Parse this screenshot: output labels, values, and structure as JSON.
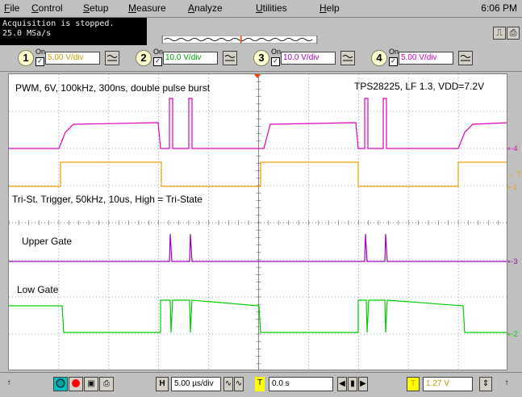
{
  "menubar": {
    "items": [
      {
        "label": "File",
        "u": "F",
        "rest": "ile"
      },
      {
        "label": "Control",
        "u": "C",
        "rest": "ontrol"
      },
      {
        "label": "Setup",
        "u": "S",
        "rest": "etup"
      },
      {
        "label": "Measure",
        "u": "M",
        "rest": "easure"
      },
      {
        "label": "Analyze",
        "u": "A",
        "rest": "nalyze"
      },
      {
        "label": "Utilities",
        "u": "U",
        "rest": "tilities"
      },
      {
        "label": "Help",
        "u": "H",
        "rest": "elp"
      }
    ],
    "clock": "6:06 PM"
  },
  "status": {
    "line1": "Acquisition is stopped.",
    "line2": "25.0 MSa/s"
  },
  "channels": [
    {
      "num": "1",
      "on": "On",
      "scale": "5.00 V/div",
      "color": "#ffff00"
    },
    {
      "num": "2",
      "on": "On",
      "scale": "10.0 V/div",
      "color": "#00ff00"
    },
    {
      "num": "3",
      "on": "On",
      "scale": "10.0 V/div",
      "color": "#ffff00"
    },
    {
      "num": "4",
      "on": "On",
      "scale": "5.00 V/div",
      "color": "#ff00ff"
    }
  ],
  "annotations": {
    "pwm": "PWM, 6V, 100kHz, 300ns, double pulse burst",
    "tps": "TPS28225, LF 1.3, VDD=7.2V",
    "tristate": "Tri-St. Trigger, 50kHz, 10us, High = Tri-State",
    "upper": "Upper Gate",
    "low": "Low Gate"
  },
  "markers": {
    "m4": "4",
    "mT": "T",
    "m1": "1",
    "m3": "3",
    "m2": "2"
  },
  "toolbar": {
    "timebase_label": "H",
    "timebase_value": "5.00 µs/div",
    "delay_label": "T",
    "delay_value": "0.0 s",
    "trigger_label": "T",
    "trigger_value": "1.27 V"
  },
  "colors": {
    "pwm": "#e000c0",
    "tristate": "#f0a000",
    "upper": "#a000c0",
    "low": "#00cc00",
    "grid": "#606060",
    "trigger": "#ff4000"
  }
}
